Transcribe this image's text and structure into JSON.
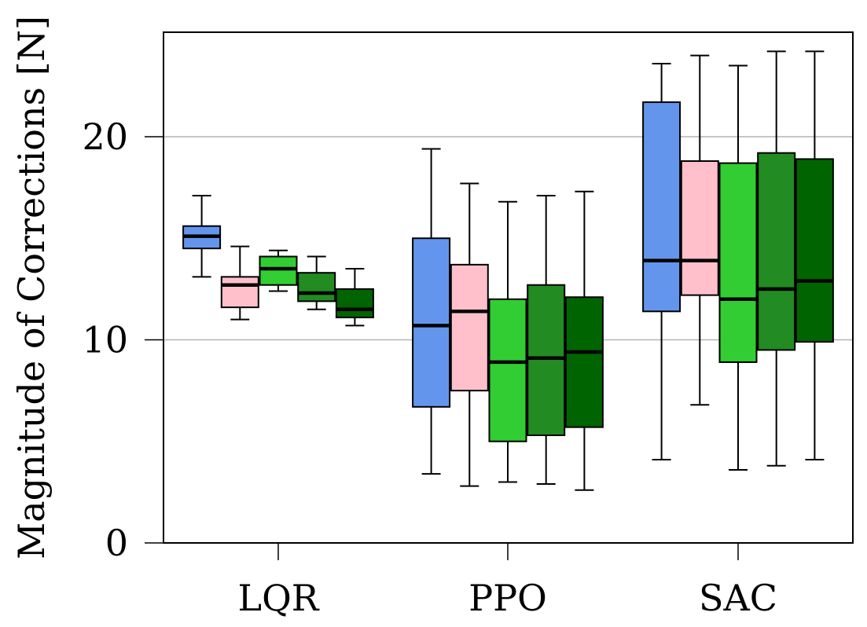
{
  "chart_data": {
    "type": "boxplot",
    "title": "",
    "xlabel": "",
    "ylabel": "Magnitude of Corrections [N]",
    "ylim": [
      0,
      25.2
    ],
    "yticks": [
      0,
      10,
      20
    ],
    "ytick_labels": [
      "0",
      "10",
      "20"
    ],
    "grid": "horizontal",
    "legend": "none",
    "categories": [
      "LQR",
      "PPO",
      "SAC"
    ],
    "series_colors": [
      "#6495ED",
      "#FFC0CB",
      "#32CD32",
      "#228B22",
      "#006400"
    ],
    "groups": [
      {
        "category": "LQR",
        "boxes": [
          {
            "whisker_low": 13.1,
            "q1": 14.5,
            "median": 15.1,
            "q3": 15.6,
            "whisker_high": 17.1
          },
          {
            "whisker_low": 11.0,
            "q1": 11.6,
            "median": 12.7,
            "q3": 13.1,
            "whisker_high": 14.6
          },
          {
            "whisker_low": 12.4,
            "q1": 12.7,
            "median": 13.5,
            "q3": 14.1,
            "whisker_high": 14.4
          },
          {
            "whisker_low": 11.5,
            "q1": 11.9,
            "median": 12.3,
            "q3": 13.3,
            "whisker_high": 14.1
          },
          {
            "whisker_low": 10.7,
            "q1": 11.1,
            "median": 11.5,
            "q3": 12.5,
            "whisker_high": 13.5
          }
        ]
      },
      {
        "category": "PPO",
        "boxes": [
          {
            "whisker_low": 3.4,
            "q1": 6.7,
            "median": 10.7,
            "q3": 15.0,
            "whisker_high": 19.4
          },
          {
            "whisker_low": 2.8,
            "q1": 7.5,
            "median": 11.4,
            "q3": 13.7,
            "whisker_high": 17.7
          },
          {
            "whisker_low": 3.0,
            "q1": 5.0,
            "median": 8.9,
            "q3": 12.0,
            "whisker_high": 16.8
          },
          {
            "whisker_low": 2.9,
            "q1": 5.3,
            "median": 9.1,
            "q3": 12.7,
            "whisker_high": 17.1
          },
          {
            "whisker_low": 2.6,
            "q1": 5.7,
            "median": 9.4,
            "q3": 12.1,
            "whisker_high": 17.3
          }
        ]
      },
      {
        "category": "SAC",
        "boxes": [
          {
            "whisker_low": 4.1,
            "q1": 11.4,
            "median": 13.9,
            "q3": 21.7,
            "whisker_high": 23.6
          },
          {
            "whisker_low": 6.8,
            "q1": 12.2,
            "median": 13.9,
            "q3": 18.8,
            "whisker_high": 24.0
          },
          {
            "whisker_low": 3.6,
            "q1": 8.9,
            "median": 12.0,
            "q3": 18.7,
            "whisker_high": 23.5
          },
          {
            "whisker_low": 3.8,
            "q1": 9.5,
            "median": 12.5,
            "q3": 19.2,
            "whisker_high": 24.2
          },
          {
            "whisker_low": 4.1,
            "q1": 9.9,
            "median": 12.9,
            "q3": 18.9,
            "whisker_high": 24.2
          }
        ]
      }
    ]
  }
}
